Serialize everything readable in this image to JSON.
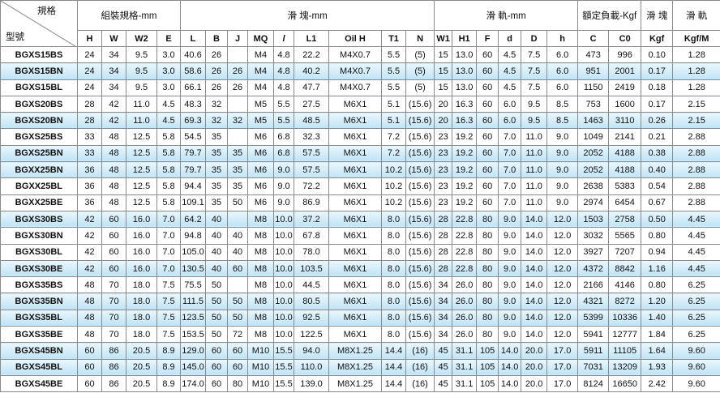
{
  "header": {
    "corner_top": "規格",
    "corner_bottom": "型號",
    "groups": [
      "組裝規格-mm",
      "滑 塊-mm",
      "滑 軌-mm",
      "額定負載-Kgf",
      "滑 塊",
      "滑 軌"
    ],
    "columns": [
      "H",
      "W",
      "W2",
      "E",
      "L",
      "B",
      "J",
      "MQ",
      "l",
      "L1",
      "Oil H",
      "T1",
      "N",
      "W1",
      "H1",
      "F",
      "d",
      "D",
      "h",
      "C",
      "C0",
      "Kgf",
      "Kgf/M"
    ]
  },
  "table": {
    "rows": [
      [
        "BGXS15BS",
        "24",
        "34",
        "9.5",
        "3.0",
        "40.6",
        "26",
        null,
        "M4",
        "4.8",
        "22.2",
        "M4X0.7",
        "5.5",
        "(5)",
        "15",
        "13.0",
        "60",
        "4.5",
        "7.5",
        "6.0",
        "473",
        "996",
        "0.10",
        "1.28"
      ],
      [
        "BGXS15BN",
        "24",
        "34",
        "9.5",
        "3.0",
        "58.6",
        "26",
        "26",
        "M4",
        "4.8",
        "40.2",
        "M4X0.7",
        "5.5",
        "(5)",
        "15",
        "13.0",
        "60",
        "4.5",
        "7.5",
        "6.0",
        "951",
        "2001",
        "0.17",
        "1.28"
      ],
      [
        "BGXS15BL",
        "24",
        "34",
        "9.5",
        "3.0",
        "66.1",
        "26",
        "26",
        "M4",
        "4.8",
        "47.7",
        "M4X0.7",
        "5.5",
        "(5)",
        "15",
        "13.0",
        "60",
        "4.5",
        "7.5",
        "6.0",
        "1150",
        "2419",
        "0.18",
        "1.28"
      ],
      [
        "BGXS20BS",
        "28",
        "42",
        "11.0",
        "4.5",
        "48.3",
        "32",
        null,
        "M5",
        "5.5",
        "27.5",
        "M6X1",
        "5.1",
        "(15.6)",
        "20",
        "16.3",
        "60",
        "6.0",
        "9.5",
        "8.5",
        "753",
        "1600",
        "0.17",
        "2.15"
      ],
      [
        "BGXS20BN",
        "28",
        "42",
        "11.0",
        "4.5",
        "69.3",
        "32",
        "32",
        "M5",
        "5.5",
        "48.5",
        "M6X1",
        "5.1",
        "(15.6)",
        "20",
        "16.3",
        "60",
        "6.0",
        "9.5",
        "8.5",
        "1463",
        "3110",
        "0.26",
        "2.15"
      ],
      [
        "BGXS25BS",
        "33",
        "48",
        "12.5",
        "5.8",
        "54.5",
        "35",
        null,
        "M6",
        "6.8",
        "32.3",
        "M6X1",
        "7.2",
        "(15.6)",
        "23",
        "19.2",
        "60",
        "7.0",
        "11.0",
        "9.0",
        "1049",
        "2141",
        "0.21",
        "2.88"
      ],
      [
        "BGXS25BN",
        "33",
        "48",
        "12.5",
        "5.8",
        "79.7",
        "35",
        "35",
        "M6",
        "6.8",
        "57.5",
        "M6X1",
        "7.2",
        "(15.6)",
        "23",
        "19.2",
        "60",
        "7.0",
        "11.0",
        "9.0",
        "2052",
        "4188",
        "0.38",
        "2.88"
      ],
      [
        "BGXX25BN",
        "36",
        "48",
        "12.5",
        "5.8",
        "79.7",
        "35",
        "35",
        "M6",
        "9.0",
        "57.5",
        "M6X1",
        "10.2",
        "(15.6)",
        "23",
        "19.2",
        "60",
        "7.0",
        "11.0",
        "9.0",
        "2052",
        "4188",
        "0.40",
        "2.88"
      ],
      [
        "BGXX25BL",
        "36",
        "48",
        "12.5",
        "5.8",
        "94.4",
        "35",
        "35",
        "M6",
        "9.0",
        "72.2",
        "M6X1",
        "10.2",
        "(15.6)",
        "23",
        "19.2",
        "60",
        "7.0",
        "11.0",
        "9.0",
        "2638",
        "5383",
        "0.54",
        "2.88"
      ],
      [
        "BGXX25BE",
        "36",
        "48",
        "12.5",
        "5.8",
        "109.1",
        "35",
        "50",
        "M6",
        "9.0",
        "86.9",
        "M6X1",
        "10.2",
        "(15.6)",
        "23",
        "19.2",
        "60",
        "7.0",
        "11.0",
        "9.0",
        "2974",
        "6454",
        "0.67",
        "2.88"
      ],
      [
        "BGXS30BS",
        "42",
        "60",
        "16.0",
        "7.0",
        "64.2",
        "40",
        null,
        "M8",
        "10.0",
        "37.2",
        "M6X1",
        "8.0",
        "(15.6)",
        "28",
        "22.8",
        "80",
        "9.0",
        "14.0",
        "12.0",
        "1503",
        "2758",
        "0.50",
        "4.45"
      ],
      [
        "BGXS30BN",
        "42",
        "60",
        "16.0",
        "7.0",
        "94.8",
        "40",
        "40",
        "M8",
        "10.0",
        "67.8",
        "M6X1",
        "8.0",
        "(15.6)",
        "28",
        "22.8",
        "80",
        "9.0",
        "14.0",
        "12.0",
        "3032",
        "5565",
        "0.80",
        "4.45"
      ],
      [
        "BGXS30BL",
        "42",
        "60",
        "16.0",
        "7.0",
        "105.0",
        "40",
        "40",
        "M8",
        "10.0",
        "78.0",
        "M6X1",
        "8.0",
        "(15.6)",
        "28",
        "22.8",
        "80",
        "9.0",
        "14.0",
        "12.0",
        "3927",
        "7207",
        "0.94",
        "4.45"
      ],
      [
        "BGXS30BE",
        "42",
        "60",
        "16.0",
        "7.0",
        "130.5",
        "40",
        "60",
        "M8",
        "10.0",
        "103.5",
        "M6X1",
        "8.0",
        "(15.6)",
        "28",
        "22.8",
        "80",
        "9.0",
        "14.0",
        "12.0",
        "4372",
        "8842",
        "1.16",
        "4.45"
      ],
      [
        "BGXS35BS",
        "48",
        "70",
        "18.0",
        "7.5",
        "75.5",
        "50",
        null,
        "M8",
        "10.0",
        "44.5",
        "M6X1",
        "8.0",
        "(15.6)",
        "34",
        "26.0",
        "80",
        "9.0",
        "14.0",
        "12.0",
        "2166",
        "4146",
        "0.80",
        "6.25"
      ],
      [
        "BGXS35BN",
        "48",
        "70",
        "18.0",
        "7.5",
        "111.5",
        "50",
        "50",
        "M8",
        "10.0",
        "80.5",
        "M6X1",
        "8.0",
        "(15.6)",
        "34",
        "26.0",
        "80",
        "9.0",
        "14.0",
        "12.0",
        "4321",
        "8272",
        "1.20",
        "6.25"
      ],
      [
        "BGXS35BL",
        "48",
        "70",
        "18.0",
        "7.5",
        "123.5",
        "50",
        "50",
        "M8",
        "10.0",
        "92.5",
        "M6X1",
        "8.0",
        "(15.6)",
        "34",
        "26.0",
        "80",
        "9.0",
        "14.0",
        "12.0",
        "5399",
        "10336",
        "1.40",
        "6.25"
      ],
      [
        "BGXS35BE",
        "48",
        "70",
        "18.0",
        "7.5",
        "153.5",
        "50",
        "72",
        "M8",
        "10.0",
        "122.5",
        "M6X1",
        "8.0",
        "(15.6)",
        "34",
        "26.0",
        "80",
        "9.0",
        "14.0",
        "12.0",
        "5941",
        "12777",
        "1.84",
        "6.25"
      ],
      [
        "BGXS45BN",
        "60",
        "86",
        "20.5",
        "8.9",
        "129.0",
        "60",
        "60",
        "M10",
        "15.5",
        "94.0",
        "M8X1.25",
        "14.4",
        "(16)",
        "45",
        "31.1",
        "105",
        "14.0",
        "20.0",
        "17.0",
        "5911",
        "11105",
        "1.64",
        "9.60"
      ],
      [
        "BGXS45BL",
        "60",
        "86",
        "20.5",
        "8.9",
        "145.0",
        "60",
        "60",
        "M10",
        "15.5",
        "110.0",
        "M8X1.25",
        "14.4",
        "(16)",
        "45",
        "31.1",
        "105",
        "14.0",
        "20.0",
        "17.0",
        "7031",
        "13209",
        "1.93",
        "9.60"
      ],
      [
        "BGXS45BE",
        "60",
        "86",
        "20.5",
        "8.9",
        "174.0",
        "60",
        "80",
        "M10",
        "15.5",
        "139.0",
        "M8X1.25",
        "14.4",
        "(16)",
        "45",
        "31.1",
        "105",
        "14.0",
        "20.0",
        "17.0",
        "8124",
        "16650",
        "2.42",
        "9.60"
      ]
    ]
  }
}
